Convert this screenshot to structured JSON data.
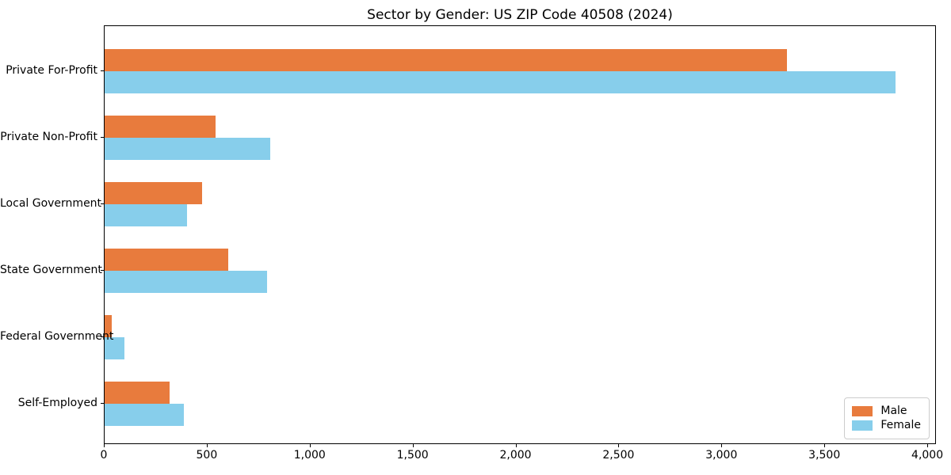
{
  "chart_data": {
    "type": "bar",
    "orientation": "horizontal",
    "title": "Sector by Gender: US ZIP Code 40508 (2024)",
    "categories": [
      "Private For-Profit",
      "Private Non-Profit",
      "Local Government",
      "State Government",
      "Federal Government",
      "Self-Employed"
    ],
    "series": [
      {
        "name": "Male",
        "color": "#E87B3D",
        "values": [
          3320,
          540,
          475,
          600,
          35,
          315
        ]
      },
      {
        "name": "Female",
        "color": "#87CEEB",
        "values": [
          3850,
          805,
          400,
          790,
          95,
          385
        ]
      }
    ],
    "xlim": [
      0,
      4042
    ],
    "x_ticks": [
      0,
      500,
      1000,
      1500,
      2000,
      2500,
      3000,
      3500,
      4000
    ],
    "x_tick_labels": [
      "0",
      "500",
      "1,000",
      "1,500",
      "2,000",
      "2,500",
      "3,000",
      "3,500",
      "4,000"
    ],
    "xlabel": "",
    "ylabel": "",
    "grid": false,
    "legend": {
      "position": "lower right"
    },
    "axis_color": "#000000",
    "background_color": "#ffffff"
  }
}
